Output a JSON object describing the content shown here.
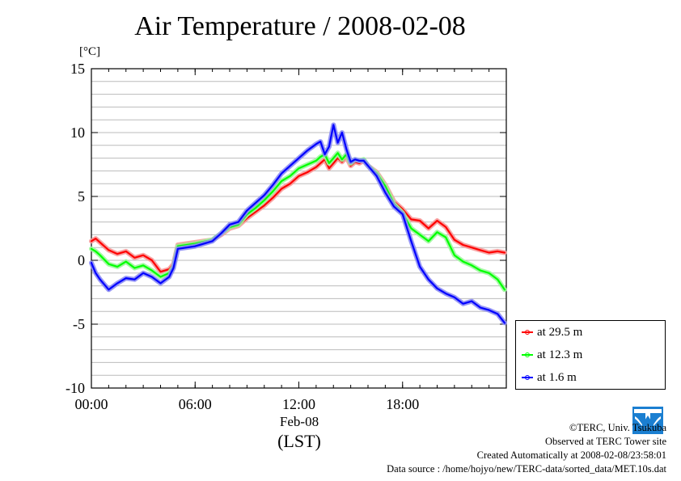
{
  "chart_data": {
    "type": "line",
    "title": "Air Temperature / 2008-02-08",
    "unit": "[°C]",
    "xlabel_date": "Feb-08",
    "xlabel_tz": "(LST)",
    "x_ticks": [
      "00:00",
      "06:00",
      "12:00",
      "18:00"
    ],
    "x_tick_values": [
      0,
      6,
      12,
      18
    ],
    "xlim": [
      0,
      24
    ],
    "y_ticks": [
      "15",
      "10",
      "5",
      "0",
      "-5",
      "-10"
    ],
    "y_tick_values": [
      15,
      10,
      5,
      0,
      -5,
      -10
    ],
    "ylim": [
      -10,
      15
    ],
    "grid_step_y": 1,
    "grid": true,
    "legend_position": "bottom-right outside",
    "series": [
      {
        "name": "at 29.5 m",
        "color": "#ff0000",
        "x": [
          0,
          0.25,
          0.5,
          1,
          1.5,
          2,
          2.5,
          3,
          3.5,
          4,
          4.5,
          4.75,
          5,
          6,
          7,
          7.5,
          8,
          8.5,
          9,
          9.5,
          10,
          10.5,
          11,
          11.5,
          12,
          12.5,
          13,
          13.25,
          13.5,
          13.75,
          14,
          14.25,
          14.5,
          14.75,
          15,
          15.25,
          15.5,
          15.75,
          16,
          16.5,
          17,
          17.5,
          18,
          18.5,
          19,
          19.5,
          20,
          20.5,
          21,
          21.5,
          22,
          22.5,
          23,
          23.5,
          23.9
        ],
        "y": [
          1.5,
          1.7,
          1.4,
          0.8,
          0.5,
          0.7,
          0.2,
          0.4,
          0.0,
          -0.9,
          -0.7,
          -0.3,
          1.2,
          1.4,
          1.6,
          2.0,
          2.5,
          2.7,
          3.3,
          3.8,
          4.3,
          4.9,
          5.6,
          6.0,
          6.6,
          6.9,
          7.3,
          7.6,
          7.9,
          7.2,
          7.6,
          8.0,
          7.7,
          8.1,
          7.4,
          7.7,
          7.6,
          7.8,
          7.4,
          6.9,
          5.9,
          4.6,
          4.0,
          3.2,
          3.1,
          2.5,
          3.1,
          2.6,
          1.6,
          1.2,
          1.0,
          0.8,
          0.6,
          0.7,
          0.6
        ]
      },
      {
        "name": "at 12.3 m",
        "color": "#00ff00",
        "x": [
          0,
          0.25,
          0.5,
          1,
          1.5,
          2,
          2.5,
          3,
          3.5,
          4,
          4.5,
          4.75,
          5,
          6,
          7,
          7.5,
          8,
          8.5,
          9,
          9.5,
          10,
          10.5,
          11,
          11.5,
          12,
          12.5,
          13,
          13.25,
          13.5,
          13.75,
          14,
          14.25,
          14.5,
          14.75,
          15,
          15.25,
          15.5,
          15.75,
          16,
          16.5,
          17,
          17.5,
          18,
          18.5,
          19,
          19.5,
          20,
          20.5,
          21,
          21.5,
          22,
          22.5,
          23,
          23.5,
          23.9
        ],
        "y": [
          0.9,
          0.7,
          0.4,
          -0.3,
          -0.5,
          -0.1,
          -0.6,
          -0.4,
          -0.8,
          -1.3,
          -1.0,
          -0.5,
          1.1,
          1.3,
          1.6,
          2.1,
          2.6,
          2.8,
          3.6,
          4.1,
          4.7,
          5.4,
          6.2,
          6.6,
          7.2,
          7.5,
          7.8,
          8.1,
          8.3,
          7.6,
          8.0,
          8.4,
          7.9,
          8.3,
          7.6,
          7.9,
          7.8,
          7.9,
          7.4,
          6.8,
          5.8,
          4.4,
          3.7,
          2.5,
          2.0,
          1.5,
          2.2,
          1.8,
          0.4,
          -0.1,
          -0.4,
          -0.8,
          -1.0,
          -1.5,
          -2.3
        ]
      },
      {
        "name": "at 1.6 m",
        "color": "#0000ff",
        "x": [
          0,
          0.25,
          0.5,
          1,
          1.5,
          2,
          2.5,
          3,
          3.5,
          4,
          4.5,
          4.75,
          5,
          6,
          7,
          7.5,
          8,
          8.5,
          9,
          9.5,
          10,
          10.5,
          11,
          11.5,
          12,
          12.5,
          13,
          13.25,
          13.5,
          13.75,
          14,
          14.25,
          14.5,
          14.75,
          15,
          15.25,
          15.5,
          15.75,
          16,
          16.5,
          17,
          17.5,
          18,
          18.5,
          19,
          19.5,
          20,
          20.5,
          21,
          21.5,
          22,
          22.5,
          23,
          23.5,
          23.9
        ],
        "y": [
          -0.2,
          -1.0,
          -1.5,
          -2.3,
          -1.8,
          -1.4,
          -1.5,
          -1.0,
          -1.3,
          -1.8,
          -1.3,
          -0.6,
          0.9,
          1.1,
          1.5,
          2.1,
          2.8,
          3.0,
          3.9,
          4.5,
          5.1,
          5.9,
          6.8,
          7.4,
          8.0,
          8.6,
          9.1,
          9.3,
          8.3,
          8.9,
          10.6,
          9.2,
          10.0,
          8.7,
          7.7,
          7.9,
          7.8,
          7.8,
          7.4,
          6.6,
          5.3,
          4.2,
          3.6,
          1.5,
          -0.5,
          -1.5,
          -2.2,
          -2.6,
          -2.9,
          -3.4,
          -3.2,
          -3.7,
          -3.9,
          -4.2,
          -4.9
        ]
      }
    ]
  },
  "footer": {
    "copyright": "©TERC, Univ. Tsukuba",
    "observed": "Observed at TERC Tower site",
    "created": "Created Automatically at 2008-02-08/23:58:01",
    "source": "Data source : /home/hojyo/new/TERC-data/sorted_data/MET.10s.dat",
    "logo_text": "TERC"
  }
}
